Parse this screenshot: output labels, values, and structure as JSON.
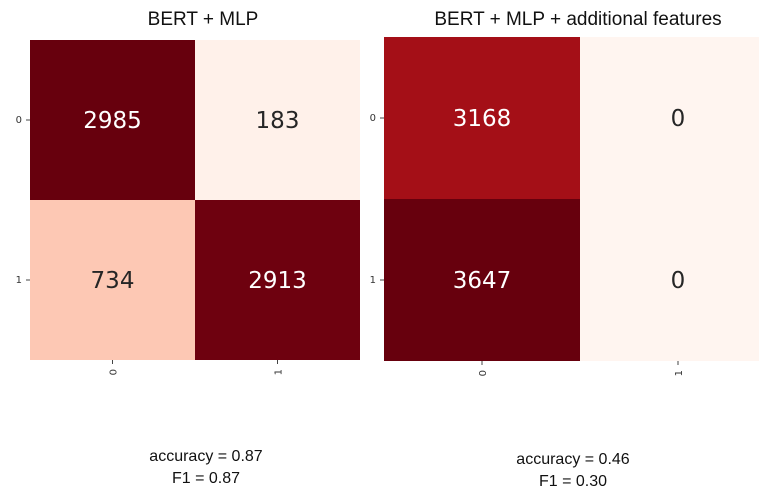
{
  "chart_data": [
    {
      "type": "heatmap",
      "title": "BERT + MLP",
      "x_ticks": [
        "0",
        "1"
      ],
      "y_ticks": [
        "0",
        "1"
      ],
      "values": [
        [
          2985,
          183
        ],
        [
          734,
          2913
        ]
      ],
      "colors": [
        [
          "#67000d",
          "#fff1ea"
        ],
        [
          "#fdc8b4",
          "#6e010f"
        ]
      ],
      "label_colors": [
        [
          "#ffffff",
          "#262626"
        ],
        [
          "#262626",
          "#ffffff"
        ]
      ],
      "metrics": {
        "accuracy": "accuracy = 0.87",
        "f1": "F1 = 0.87"
      }
    },
    {
      "type": "heatmap",
      "title": "BERT + MLP + additional features",
      "x_ticks": [
        "0",
        "1"
      ],
      "y_ticks": [
        "0",
        "1"
      ],
      "values": [
        [
          3168,
          0
        ],
        [
          3647,
          0
        ]
      ],
      "colors": [
        [
          "#a40f17",
          "#fff5f0"
        ],
        [
          "#67000d",
          "#fff5f0"
        ]
      ],
      "label_colors": [
        [
          "#ffffff",
          "#262626"
        ],
        [
          "#ffffff",
          "#262626"
        ]
      ],
      "metrics": {
        "accuracy": "accuracy = 0.46",
        "f1": "F1 = 0.30"
      }
    }
  ]
}
